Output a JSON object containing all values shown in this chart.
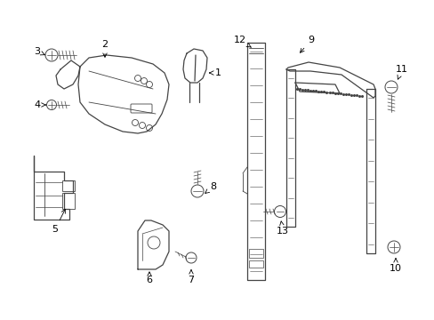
{
  "background_color": "#ffffff",
  "line_color": "#444444",
  "label_color": "#000000",
  "fig_w": 4.89,
  "fig_h": 3.6,
  "dpi": 100
}
